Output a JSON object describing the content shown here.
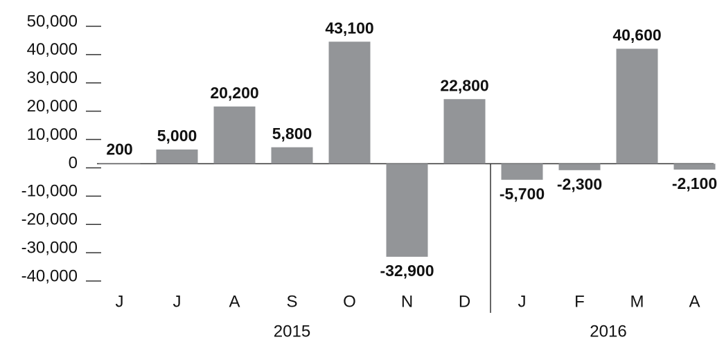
{
  "chart_data": {
    "type": "bar",
    "categories": [
      "J",
      "J",
      "A",
      "S",
      "O",
      "N",
      "D",
      "J",
      "F",
      "M",
      "A"
    ],
    "values": [
      200,
      5000,
      20200,
      5800,
      43100,
      -32900,
      22800,
      -5700,
      -2300,
      40600,
      -2100
    ],
    "value_labels": [
      "200",
      "5,000",
      "20,200",
      "5,800",
      "43,100",
      "-32,900",
      "22,800",
      "-5,700",
      "-2,300",
      "40,600",
      "-2,100"
    ],
    "groups": [
      {
        "label": "2015",
        "count": 7
      },
      {
        "label": "2016",
        "count": 4
      }
    ],
    "color": "#939598",
    "ylim": [
      -40000,
      50000
    ],
    "yticks": [
      {
        "value": 50000,
        "label": "50,000"
      },
      {
        "value": 40000,
        "label": "40,000"
      },
      {
        "value": 30000,
        "label": "30,000"
      },
      {
        "value": 20000,
        "label": "20,000"
      },
      {
        "value": 10000,
        "label": "10,000"
      },
      0,
      {
        "value": -10000,
        "label": "-10,000"
      },
      {
        "value": -20000,
        "label": "-20,000"
      },
      {
        "value": -30000,
        "label": "-30,000"
      },
      {
        "value": -40000,
        "label": "-40,000"
      }
    ]
  }
}
